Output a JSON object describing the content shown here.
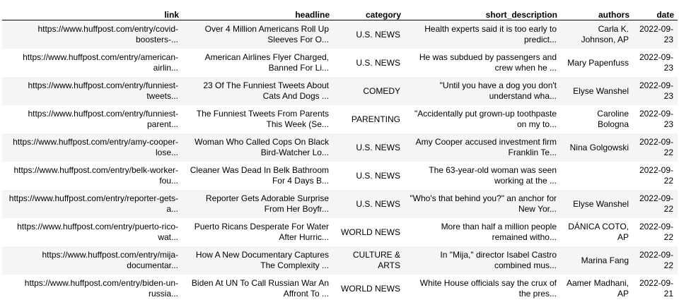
{
  "table": {
    "columns": [
      "link",
      "headline",
      "category",
      "short_description",
      "authors",
      "date"
    ],
    "rows": [
      {
        "link": [
          "https://www.huffpost.com/entry/covid-",
          "boosters-..."
        ],
        "headline": [
          "Over 4 Million Americans Roll Up",
          "Sleeves For O..."
        ],
        "category": [
          "U.S. NEWS"
        ],
        "short_description": [
          "Health experts said it is too early to",
          "predict..."
        ],
        "authors": [
          "Carla K.",
          "Johnson, AP"
        ],
        "date": [
          "2022-09-",
          "23"
        ]
      },
      {
        "link": [
          "https://www.huffpost.com/entry/american-",
          "airlin..."
        ],
        "headline": [
          "American Airlines Flyer Charged,",
          "Banned For Li..."
        ],
        "category": [
          "U.S. NEWS"
        ],
        "short_description": [
          "He was subdued by passengers and",
          "crew when he ..."
        ],
        "authors": [
          "Mary Papenfuss"
        ],
        "date": [
          "2022-09-",
          "23"
        ]
      },
      {
        "link": [
          "https://www.huffpost.com/entry/funniest-",
          "tweets..."
        ],
        "headline": [
          "23 Of The Funniest Tweets About",
          "Cats And Dogs ..."
        ],
        "category": [
          "COMEDY"
        ],
        "short_description": [
          "\"Until you have a dog you don't",
          "understand wha..."
        ],
        "authors": [
          "Elyse Wanshel"
        ],
        "date": [
          "2022-09-",
          "23"
        ]
      },
      {
        "link": [
          "https://www.huffpost.com/entry/funniest-",
          "parent..."
        ],
        "headline": [
          "The Funniest Tweets From Parents",
          "This Week (Se..."
        ],
        "category": [
          "PARENTING"
        ],
        "short_description": [
          "\"Accidentally put grown-up toothpaste",
          "on my to..."
        ],
        "authors": [
          "Caroline",
          "Bologna"
        ],
        "date": [
          "2022-09-",
          "23"
        ]
      },
      {
        "link": [
          "https://www.huffpost.com/entry/amy-cooper-",
          "lose..."
        ],
        "headline": [
          "Woman Who Called Cops On Black",
          "Bird-Watcher Lo..."
        ],
        "category": [
          "U.S. NEWS"
        ],
        "short_description": [
          "Amy Cooper accused investment firm",
          "Franklin Te..."
        ],
        "authors": [
          "Nina Golgowski"
        ],
        "date": [
          "2022-09-",
          "22"
        ]
      },
      {
        "link": [
          "https://www.huffpost.com/entry/belk-worker-",
          "fou..."
        ],
        "headline": [
          "Cleaner Was Dead In Belk Bathroom",
          "For 4 Days B..."
        ],
        "category": [
          "U.S. NEWS"
        ],
        "short_description": [
          "The 63-year-old woman was seen",
          "working at the ..."
        ],
        "authors": [
          ""
        ],
        "date": [
          "2022-09-",
          "22"
        ]
      },
      {
        "link": [
          "https://www.huffpost.com/entry/reporter-gets-",
          "a..."
        ],
        "headline": [
          "Reporter Gets Adorable Surprise",
          "From Her Boyfr..."
        ],
        "category": [
          "U.S. NEWS"
        ],
        "short_description": [
          "\"Who's that behind you?\" an anchor for",
          "New Yor..."
        ],
        "authors": [
          "Elyse Wanshel"
        ],
        "date": [
          "2022-09-",
          "22"
        ]
      },
      {
        "link": [
          "https://www.huffpost.com/entry/puerto-rico-",
          "wat..."
        ],
        "headline": [
          "Puerto Ricans Desperate For Water",
          "After Hurric..."
        ],
        "category": [
          "WORLD NEWS"
        ],
        "short_description": [
          "More than half a million people",
          "remained witho..."
        ],
        "authors": [
          "DÁNICA COTO,",
          "AP"
        ],
        "date": [
          "2022-09-",
          "22"
        ]
      },
      {
        "link": [
          "https://www.huffpost.com/entry/mija-",
          "documentar..."
        ],
        "headline": [
          "How A New Documentary Captures",
          "The Complexity ..."
        ],
        "category": [
          "CULTURE &",
          "ARTS"
        ],
        "short_description": [
          "In \"Mija,\" director Isabel Castro",
          "combined mus..."
        ],
        "authors": [
          "Marina Fang"
        ],
        "date": [
          "2022-09-",
          "22"
        ]
      },
      {
        "link": [
          "https://www.huffpost.com/entry/biden-un-",
          "russia..."
        ],
        "headline": [
          "Biden At UN To Call Russian War An",
          "Affront To ..."
        ],
        "category": [
          "WORLD NEWS"
        ],
        "short_description": [
          "White House officials say the crux of",
          "the pres..."
        ],
        "authors": [
          "Aamer Madhani,",
          "AP"
        ],
        "date": [
          "2022-09-",
          "21"
        ]
      }
    ]
  }
}
